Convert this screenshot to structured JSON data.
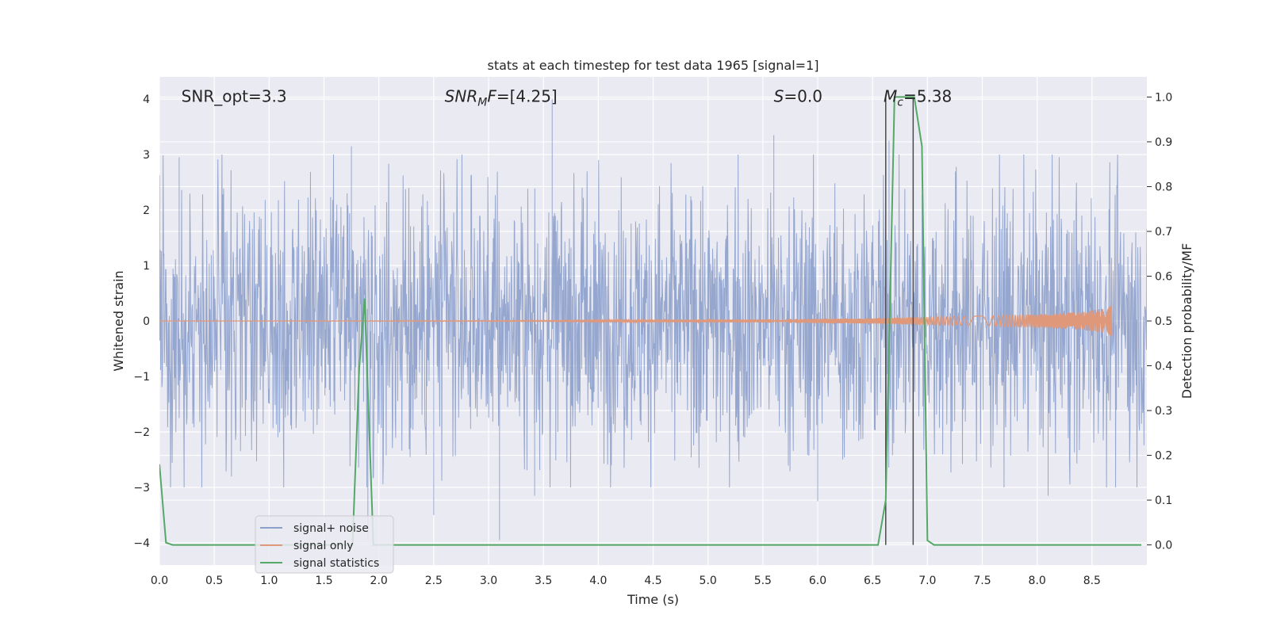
{
  "chart_data": {
    "type": "line",
    "title": "stats at each timestep for test data 1965 [signal=1]",
    "xlabel": "Time (s)",
    "ylabel": "Whitened strain",
    "y2label": "Detection probability/MF",
    "xlim": [
      0.0,
      9.0
    ],
    "ylim": [
      -4.4,
      4.4
    ],
    "y2lim": [
      -0.045,
      1.045
    ],
    "x_ticks": [
      0.0,
      0.5,
      1.0,
      1.5,
      2.0,
      2.5,
      3.0,
      3.5,
      4.0,
      4.5,
      5.0,
      5.5,
      6.0,
      6.5,
      7.0,
      7.5,
      8.0,
      8.5
    ],
    "y_ticks": [
      4,
      3,
      2,
      1,
      0,
      -1,
      -2,
      -3,
      -4
    ],
    "y2_ticks": [
      1.0,
      0.9,
      0.8,
      0.7,
      0.6,
      0.5,
      0.4,
      0.3,
      0.2,
      0.1,
      0.0
    ],
    "grid": true,
    "legend_position": "lower-left",
    "colors": {
      "noise": "#8da0cb",
      "signal": "#e0987a",
      "stats": "#55a868",
      "vline": "#4c4c4c",
      "background": "#eaeaf2"
    },
    "annotations": [
      {
        "text": "SNR_opt=3.3",
        "x": 0.2,
        "y": 4.05
      },
      {
        "text": "=[4.25]",
        "math": "SNRMF",
        "x": 2.6,
        "y": 4.05
      },
      {
        "text": "=0.0",
        "math": "S",
        "x": 5.6,
        "y": 4.05
      },
      {
        "text": "=5.38",
        "math": "Mc",
        "x": 6.6,
        "y": 4.05
      }
    ],
    "series": [
      {
        "name": "signal+ noise",
        "kind": "noise",
        "x_range": [
          0.0,
          9.0
        ],
        "typical_amplitude": 1.6,
        "notable_peaks": [
          {
            "x": 0.18,
            "y": 2.95
          },
          {
            "x": 1.75,
            "y": 3.15
          },
          {
            "x": 3.58,
            "y": 4.0
          },
          {
            "x": 5.6,
            "y": 3.35
          },
          {
            "x": 6.65,
            "y": 3.25
          },
          {
            "x": 2.5,
            "y": -3.5
          },
          {
            "x": 3.1,
            "y": -3.95
          },
          {
            "x": 3.42,
            "y": -3.15
          },
          {
            "x": 6.0,
            "y": -3.25
          },
          {
            "x": 8.1,
            "y": -3.15
          },
          {
            "x": 1.9,
            "y": -3.95
          }
        ]
      },
      {
        "name": "signal only",
        "kind": "chirp",
        "x": [
          0.0,
          3.5,
          4.5,
          5.5,
          6.0,
          6.5,
          7.0,
          7.5,
          8.0,
          8.4,
          8.6,
          8.68
        ],
        "envelope": [
          0.0,
          0.01,
          0.02,
          0.03,
          0.04,
          0.05,
          0.07,
          0.09,
          0.12,
          0.16,
          0.22,
          0.28
        ]
      },
      {
        "name": "signal statistics",
        "kind": "line",
        "axis": "right",
        "x": [
          0.0,
          0.06,
          0.12,
          1.7,
          1.76,
          1.82,
          1.87,
          1.95,
          1.98,
          6.55,
          6.62,
          6.7,
          6.88,
          6.95,
          7.0,
          7.06,
          8.95
        ],
        "values": [
          0.18,
          0.005,
          0.0,
          0.0,
          0.0,
          0.39,
          0.55,
          0.0,
          0.0,
          0.0,
          0.1,
          1.0,
          1.0,
          0.89,
          0.01,
          0.0,
          0.0
        ]
      }
    ],
    "vertical_lines": [
      6.62,
      6.87
    ]
  }
}
